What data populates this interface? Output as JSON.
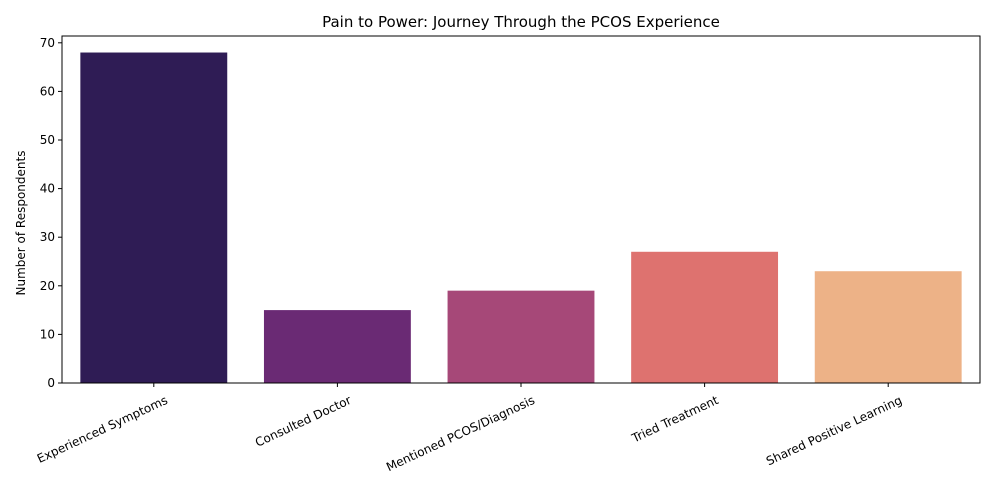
{
  "chart_data": {
    "type": "bar",
    "title": "Pain to Power: Journey Through the PCOS Experience",
    "xlabel": "",
    "ylabel": "Number of Respondents",
    "categories": [
      "Experienced Symptoms",
      "Consulted Doctor",
      "Mentioned PCOS/Diagnosis",
      "Tried Treatment",
      "Shared Positive Learning"
    ],
    "values": [
      68,
      15,
      19,
      27,
      23
    ],
    "colors": [
      "#2f1c55",
      "#6a2a74",
      "#a64878",
      "#de726f",
      "#edb287"
    ],
    "ylim": [
      0,
      71.4
    ],
    "yticks": [
      0,
      10,
      20,
      30,
      40,
      50,
      60,
      70
    ],
    "grid": false,
    "legend": "none"
  }
}
